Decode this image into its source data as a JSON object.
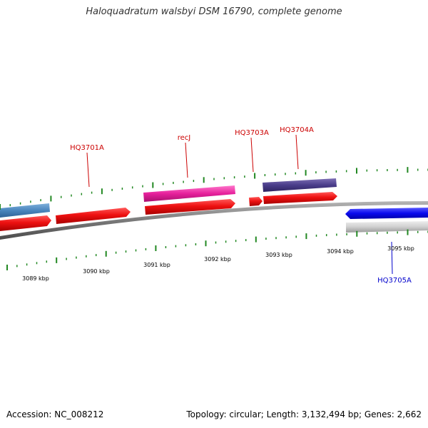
{
  "title": "Haloquadratum walsbyi DSM 16790, complete genome",
  "footer": {
    "accession": "Accession: NC_008212",
    "summary": "Topology: circular; Length: 3,132,494 bp; Genes: 2,662"
  },
  "colors": {
    "backbone": "#7a7a7a",
    "forward_gene": "#ee1111",
    "label_red": "#cc0000",
    "label_blue": "#0000cc",
    "tick": "#228822"
  },
  "gene_labels": [
    {
      "text": "HQ3701A",
      "color": "#cc0000"
    },
    {
      "text": "recJ",
      "color": "#cc0000"
    },
    {
      "text": "HQ3703A",
      "color": "#cc0000"
    },
    {
      "text": "HQ3704A",
      "color": "#cc0000"
    },
    {
      "text": "HQ3705A",
      "color": "#0000cc"
    }
  ],
  "scale_labels": [
    "3089 kbp",
    "3090 kbp",
    "3091 kbp",
    "3092 kbp",
    "3093 kbp",
    "3094 kbp",
    "3095 kbp"
  ]
}
